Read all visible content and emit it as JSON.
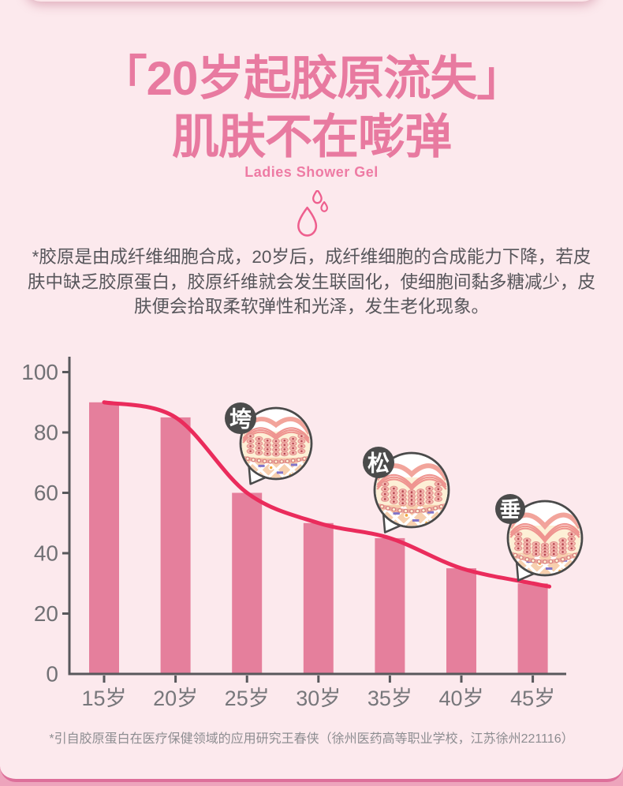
{
  "header": {
    "title_line1": "「20岁起胶原流失」",
    "title_line2": "肌肤不在嘭弹",
    "subtitle": "Ladies Shower Gel"
  },
  "description": "*胶原是由成纤维细胞合成，20岁后，成纤维细胞的合成能力下降，若皮肤中缺乏胶原蛋白，胶原纤维就会发生联固化，使细胞间黏多糖减少，皮肤便会拾取柔软弹性和光泽，发生老化现象。",
  "chart_data": {
    "type": "bar",
    "title": "",
    "categories": [
      "15岁",
      "20岁",
      "25岁",
      "30岁",
      "35岁",
      "40岁",
      "45岁"
    ],
    "values": [
      90,
      85,
      60,
      50,
      45,
      35,
      30
    ],
    "xlabel": "",
    "ylabel": "",
    "ylim": [
      0,
      100
    ],
    "yticks": [
      0,
      20,
      40,
      60,
      80,
      100
    ],
    "grid": false,
    "legend": false,
    "overlay_line_through_bar_tops": true,
    "callouts": [
      {
        "label": "垮"
      },
      {
        "label": "松"
      },
      {
        "label": "垂"
      }
    ]
  },
  "footnote": "*引自胶原蛋白在医疗保健领域的应用研究王春侠（徐州医药高等职业学校，江苏徐州221116）",
  "colors": {
    "title_pink": "#e87aa0",
    "bar_pink": "#e57f9c",
    "trend_line": "#ea2c5c",
    "badge_gray": "#4b4b4b",
    "bubble_border": "#4a4a4a",
    "axis_gray": "#58585c",
    "tick_label_gray": "#717175",
    "card_bg": "#fce9ed",
    "bottom_border": "#dd6f9a",
    "drop_icon_pink": "#ee5f8e"
  }
}
